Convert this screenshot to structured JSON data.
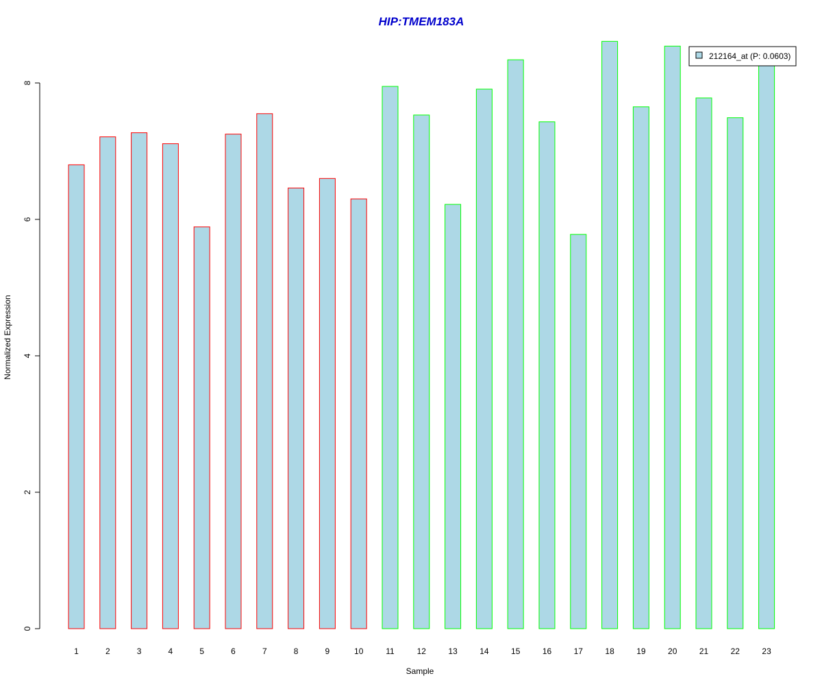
{
  "colors": {
    "title": "#0000CC",
    "bar_fill": "#ADD8E6",
    "group1_border": "#FF0000",
    "group2_border": "#00FF00",
    "axis": "#000000",
    "background": "#FFFFFF"
  },
  "chart_data": {
    "type": "bar",
    "title": "HIP:TMEM183A",
    "xlabel": "Sample",
    "ylabel": "Normalized Expression",
    "ylim": [
      0,
      8.6
    ],
    "yticks": [
      0,
      2,
      4,
      6,
      8
    ],
    "ytick_labels": [
      "0",
      "2",
      "4",
      "6",
      "8"
    ],
    "categories": [
      "1",
      "2",
      "3",
      "4",
      "5",
      "6",
      "7",
      "8",
      "9",
      "10",
      "11",
      "12",
      "13",
      "14",
      "15",
      "16",
      "17",
      "18",
      "19",
      "20",
      "21",
      "22",
      "23"
    ],
    "values": [
      6.8,
      7.21,
      7.27,
      7.11,
      5.89,
      7.25,
      7.55,
      6.46,
      6.6,
      6.3,
      7.95,
      7.53,
      6.22,
      7.91,
      8.34,
      7.43,
      5.78,
      8.61,
      7.65,
      8.54,
      7.78,
      7.49,
      8.26
    ],
    "groups": [
      1,
      1,
      1,
      1,
      1,
      1,
      1,
      1,
      1,
      1,
      2,
      2,
      2,
      2,
      2,
      2,
      2,
      2,
      2,
      2,
      2,
      2,
      2
    ],
    "grid": false,
    "legend": {
      "placement": "top-right",
      "entries": [
        {
          "label": "212164_at (P: 0.0603)",
          "color": "#ADD8E6"
        }
      ]
    }
  }
}
